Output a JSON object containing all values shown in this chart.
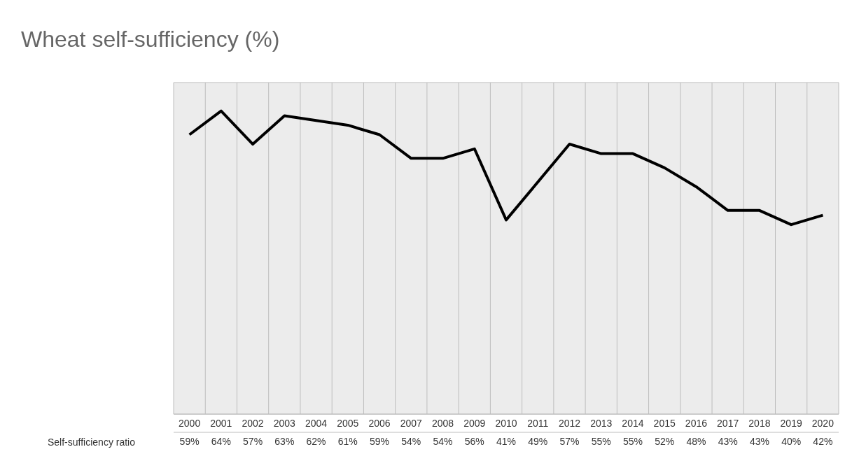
{
  "chart_data": {
    "type": "line",
    "title": "Wheat self-sufficiency (%)",
    "categories": [
      "2000",
      "2001",
      "2002",
      "2003",
      "2004",
      "2005",
      "2006",
      "2007",
      "2008",
      "2009",
      "2010",
      "2011",
      "2012",
      "2013",
      "2014",
      "2015",
      "2016",
      "2017",
      "2018",
      "2019",
      "2020"
    ],
    "series": [
      {
        "name": "Self-sufficiency ratio",
        "color": "#000000",
        "values": [
          59,
          64,
          57,
          63,
          62,
          61,
          59,
          54,
          54,
          56,
          41,
          49,
          57,
          55,
          55,
          52,
          48,
          43,
          43,
          40,
          42
        ],
        "value_labels": [
          "59%",
          "64%",
          "57%",
          "63%",
          "62%",
          "61%",
          "59%",
          "54%",
          "54%",
          "56%",
          "41%",
          "49%",
          "57%",
          "55%",
          "55%",
          "52%",
          "48%",
          "43%",
          "43%",
          "40%",
          "42%"
        ]
      }
    ],
    "ylim": [
      0,
      70
    ],
    "tick_labels": "x",
    "grid": true,
    "marker": "none",
    "line_style": "solid"
  }
}
